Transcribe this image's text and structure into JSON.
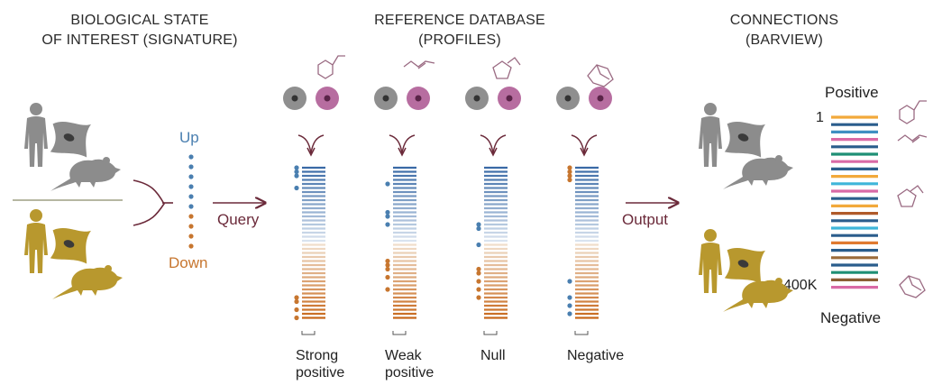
{
  "sections": {
    "signature": {
      "line1": "BIOLOGICAL STATE",
      "line2": "OF INTEREST (SIGNATURE)"
    },
    "reference": {
      "line1": "REFERENCE DATABASE",
      "line2": "(PROFILES)"
    },
    "connections": {
      "line1": "CONNECTIONS",
      "line2": "(BARVIEW)"
    }
  },
  "signature_list": {
    "up_label": "Up",
    "down_label": "Down"
  },
  "arrows": {
    "query_label": "Query",
    "output_label": "Output"
  },
  "profiles": [
    {
      "line1": "Strong",
      "line2": "positive"
    },
    {
      "line1": "Weak",
      "line2": "positive"
    },
    {
      "line1": "Null",
      "line2": ""
    },
    {
      "line1": "Negative",
      "line2": ""
    }
  ],
  "barview": {
    "top_label": "Positive",
    "bottom_label": "Negative",
    "rank_top": "1",
    "rank_bottom": "400K",
    "bar_colors": [
      "#f2a93b",
      "#2a5d8c",
      "#3f8fc2",
      "#d96aa6",
      "#2a5d8c",
      "#1f8f75",
      "#d96aa6",
      "#2a5d8c",
      "#f2a93b",
      "#3fb6d9",
      "#d96aa6",
      "#2a5d8c",
      "#f2a93b",
      "#b05a2a",
      "#2a5d8c",
      "#3fb6d9",
      "#2a5d8c",
      "#e07a30",
      "#2a5d8c",
      "#9b6b3a",
      "#2a5d8c",
      "#1f8f75",
      "#8b5e34",
      "#d96aa6"
    ]
  },
  "colors": {
    "up_blue": "#4a7fb0",
    "down_orange": "#c7762f",
    "gray_figure": "#8c8c8c",
    "gold_figure": "#b8982e",
    "arrow": "#6b2a3a",
    "molecule": "#9a6a82",
    "cell_gray": "#8f8f8f",
    "cell_pink": "#b76da0"
  }
}
